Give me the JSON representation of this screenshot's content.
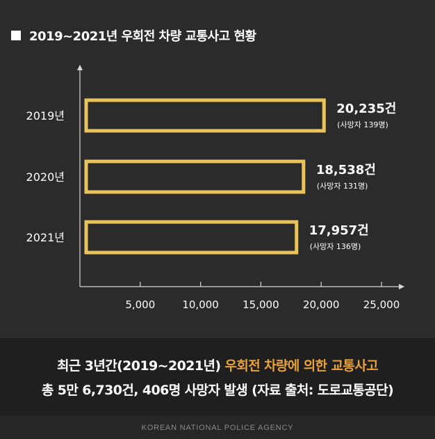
{
  "title": "2019~2021년 우회전 차량 교통사고 현황",
  "colors": {
    "bar_stroke": "#e8c35e",
    "accent": "#e9a23b",
    "axis": "#d8d8d8"
  },
  "chart_data": {
    "type": "bar",
    "orientation": "horizontal",
    "title": "2019~2021년 우회전 차량 교통사고 현황",
    "categories": [
      "2019년",
      "2020년",
      "2021년"
    ],
    "values": [
      20235,
      18538,
      17957
    ],
    "value_labels": [
      "20,235건",
      "18,538건",
      "17,957건"
    ],
    "sub_labels": [
      "(사망자 139명)",
      "(사망자 131명)",
      "(사망자 136명)"
    ],
    "xlim": [
      0,
      25000
    ],
    "xticks": [
      5000,
      10000,
      15000,
      20000,
      25000
    ],
    "xtick_labels": [
      "5,000",
      "10,000",
      "15,000",
      "20,000",
      "25,000"
    ],
    "grid": false
  },
  "footer": {
    "line1_prefix": "최근 3년간(2019~2021년) ",
    "line1_highlight": "우회전 차량에 의한 교통사고",
    "line2": "총 5만 6,730건, 406명 사망자 발생 (자료 출처: 도로교통공단)"
  },
  "agency": "KOREAN NATIONAL POLICE AGENCY"
}
